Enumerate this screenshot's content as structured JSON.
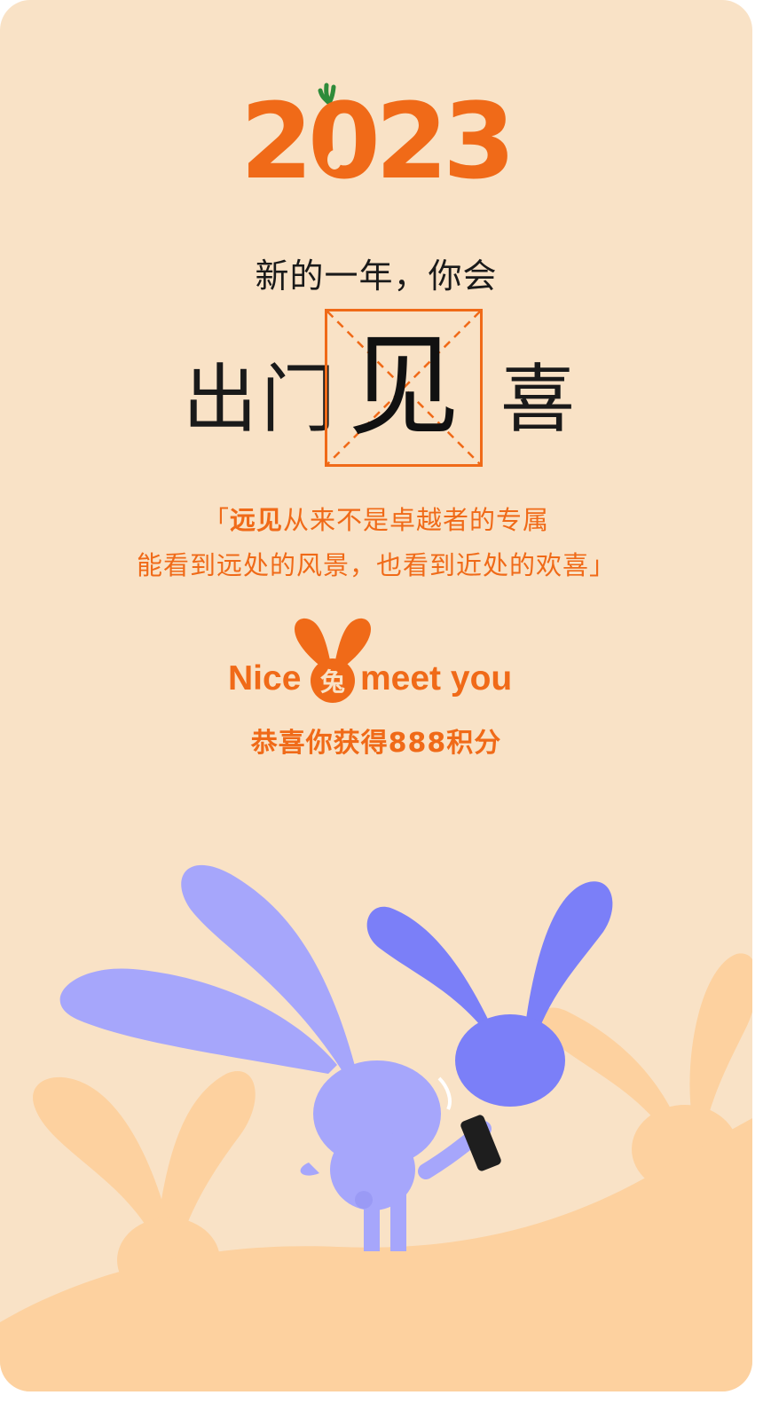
{
  "year_logo": "2023",
  "subtitle": "新的一年，你会",
  "hero": {
    "left": "出门",
    "center": "见",
    "right": "喜"
  },
  "quote": {
    "open_mark": "「",
    "highlight": "远见",
    "line1_rest": "从来不是卓越者的专属",
    "line2": "能看到远处的风景，也看到近处的欢喜」"
  },
  "nice_meet": {
    "left": "Nice",
    "badge_char": "兔",
    "right": "meet you"
  },
  "points_text": "恭喜你获得888积分",
  "colors": {
    "background": "#f9e2c6",
    "accent": "#f06a18",
    "dark_text": "#1a1a1a",
    "bunny_light": "#a6a6fb",
    "bunny_dark": "#7b7ff8",
    "hills": "#fdd19f",
    "phone": "#1e1e1e"
  }
}
